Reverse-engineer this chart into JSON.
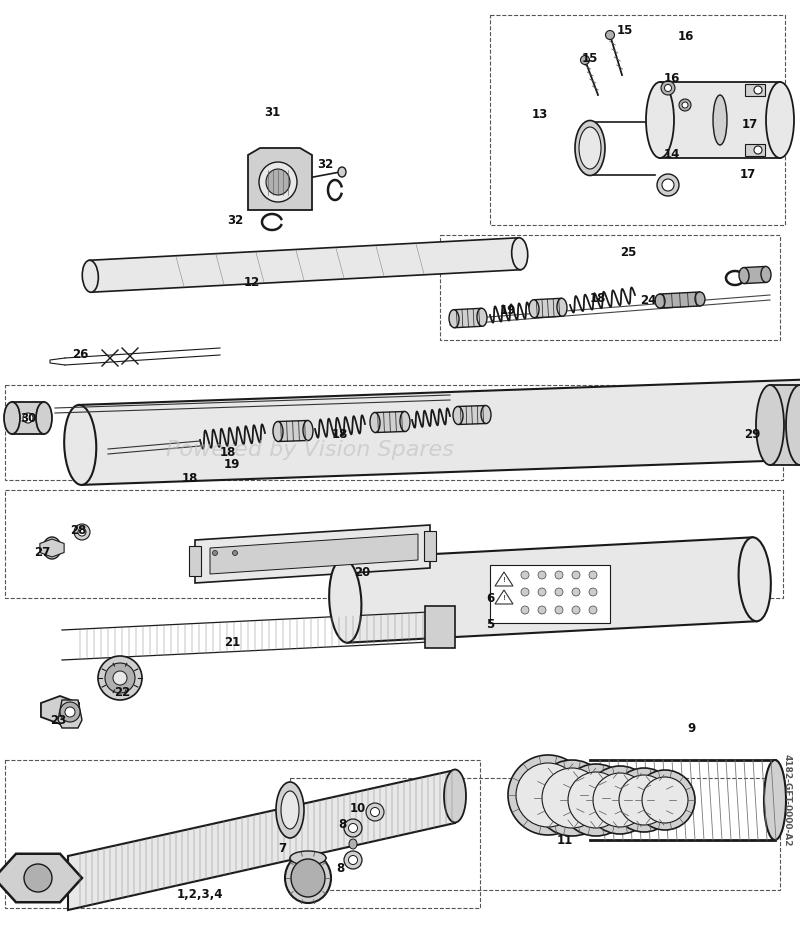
{
  "bg_color": "#ffffff",
  "lc": "#1a1a1a",
  "gray1": "#e8e8e8",
  "gray2": "#d0d0d0",
  "gray3": "#b0b0b0",
  "watermark_text": "Powered by Vision Spares",
  "catalog_id": "4182-GET-0000-A2",
  "figsize": [
    8.0,
    9.39
  ],
  "dpi": 100
}
